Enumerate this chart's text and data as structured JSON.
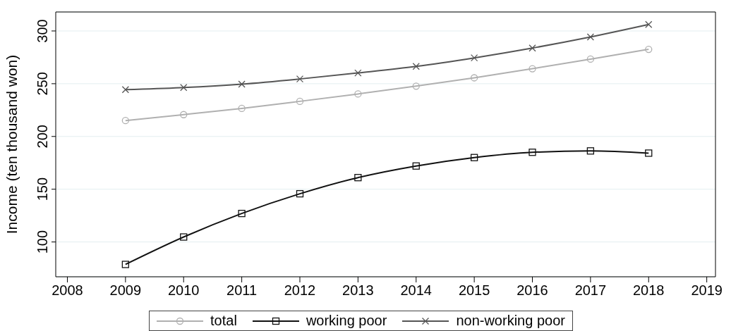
{
  "chart_data": {
    "type": "line",
    "ylabel": "Income (ten thousand won)",
    "x": [
      2009,
      2010,
      2011,
      2012,
      2013,
      2014,
      2015,
      2016,
      2017,
      2018
    ],
    "series": [
      {
        "name": "total",
        "color": "#b0b0b0",
        "marker": "circle",
        "values": [
          215.1,
          220.7,
          226.6,
          233.3,
          240.3,
          247.7,
          255.6,
          264.2,
          273.3,
          282.6
        ]
      },
      {
        "name": "working poor",
        "color": "#111111",
        "marker": "square",
        "values": [
          78.7,
          104.7,
          127.0,
          145.7,
          161.0,
          172.0,
          180.0,
          185.0,
          186.3,
          184.2
        ]
      },
      {
        "name": "non-working poor",
        "color": "#555555",
        "marker": "cross",
        "values": [
          244.4,
          246.4,
          249.6,
          254.5,
          260.2,
          266.4,
          274.5,
          283.8,
          294.3,
          306.1
        ]
      }
    ],
    "xlim": [
      2007.8,
      2019.15
    ],
    "xticks": [
      2008,
      2009,
      2010,
      2011,
      2012,
      2013,
      2014,
      2015,
      2016,
      2017,
      2018,
      2019
    ],
    "ylim": [
      67,
      318
    ],
    "yticks": [
      100,
      150,
      200,
      250,
      300
    ],
    "grid": "y",
    "legend": "bottom"
  }
}
